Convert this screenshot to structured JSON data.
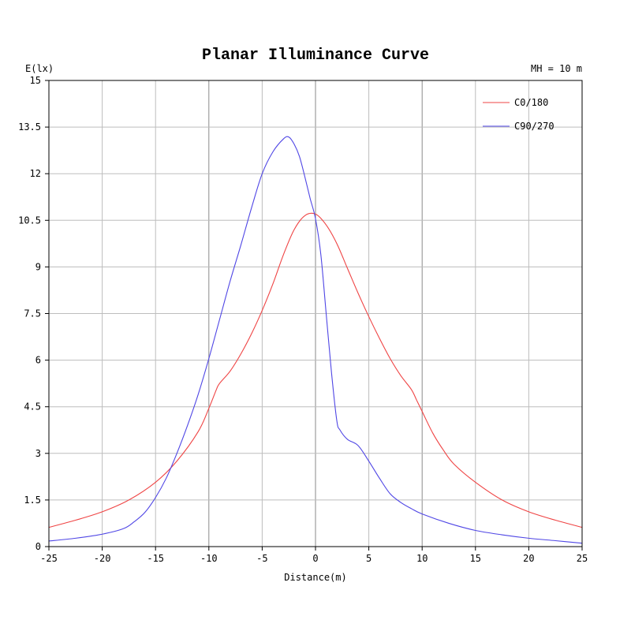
{
  "chart_data": {
    "type": "line",
    "title": "Planar Illuminance Curve",
    "ylabel": "E(lx)",
    "xlabel": "Distance(m)",
    "annotation": "MH = 10 m",
    "xlim": [
      -25,
      25
    ],
    "ylim": [
      0,
      15
    ],
    "x_ticks": [
      -25,
      -20,
      -15,
      -10,
      -5,
      0,
      5,
      10,
      15,
      20,
      25
    ],
    "y_ticks": [
      0,
      1.5,
      3,
      4.5,
      6,
      7.5,
      9,
      10.5,
      12,
      13.5,
      15
    ],
    "y_tick_labels": [
      "0",
      "1.5",
      "3",
      "4.5",
      "6",
      "7.5",
      "9",
      "10.5",
      "12",
      "13.5",
      "15"
    ],
    "grid": true,
    "legend_position": "top-right",
    "series": [
      {
        "name": "C0/180",
        "color": "#ef4444",
        "x": [
          -25,
          -22.5,
          -20,
          -17.5,
          -15,
          -13,
          -11,
          -10,
          -9.3,
          -9,
          -8,
          -7,
          -6,
          -5,
          -4,
          -3,
          -2,
          -1,
          0,
          1,
          2,
          3,
          4,
          5,
          6,
          7,
          8,
          9,
          9.5,
          10,
          11,
          12,
          13,
          15,
          17.5,
          20,
          22.5,
          25
        ],
        "y": [
          0.62,
          0.85,
          1.12,
          1.5,
          2.07,
          2.75,
          3.7,
          4.45,
          5.05,
          5.25,
          5.65,
          6.2,
          6.85,
          7.6,
          8.45,
          9.4,
          10.2,
          10.65,
          10.7,
          10.35,
          9.75,
          8.95,
          8.15,
          7.4,
          6.7,
          6.05,
          5.5,
          5.05,
          4.7,
          4.35,
          3.65,
          3.1,
          2.65,
          2.07,
          1.5,
          1.12,
          0.85,
          0.62
        ]
      },
      {
        "name": "C90/270",
        "color": "#4f46e5",
        "x": [
          -25,
          -22.5,
          -20,
          -18,
          -17,
          -16,
          -15,
          -14,
          -13,
          -12,
          -11,
          -10,
          -9,
          -8,
          -7,
          -6,
          -5,
          -4,
          -3,
          -2.5,
          -2,
          -1.5,
          -1,
          -0.5,
          0,
          0.5,
          1,
          1.5,
          2,
          2.3,
          3,
          4,
          5,
          6,
          7,
          8,
          9,
          10,
          12.5,
          15,
          17.5,
          20,
          22.5,
          25
        ],
        "y": [
          0.18,
          0.27,
          0.4,
          0.58,
          0.8,
          1.1,
          1.58,
          2.2,
          3.0,
          3.9,
          4.9,
          6.05,
          7.3,
          8.55,
          9.7,
          10.9,
          12.0,
          12.7,
          13.12,
          13.18,
          12.95,
          12.55,
          11.9,
          11.2,
          10.55,
          9.4,
          7.5,
          5.6,
          4.05,
          3.75,
          3.45,
          3.25,
          2.75,
          2.2,
          1.7,
          1.42,
          1.22,
          1.05,
          0.75,
          0.52,
          0.38,
          0.27,
          0.19,
          0.11
        ]
      }
    ]
  }
}
